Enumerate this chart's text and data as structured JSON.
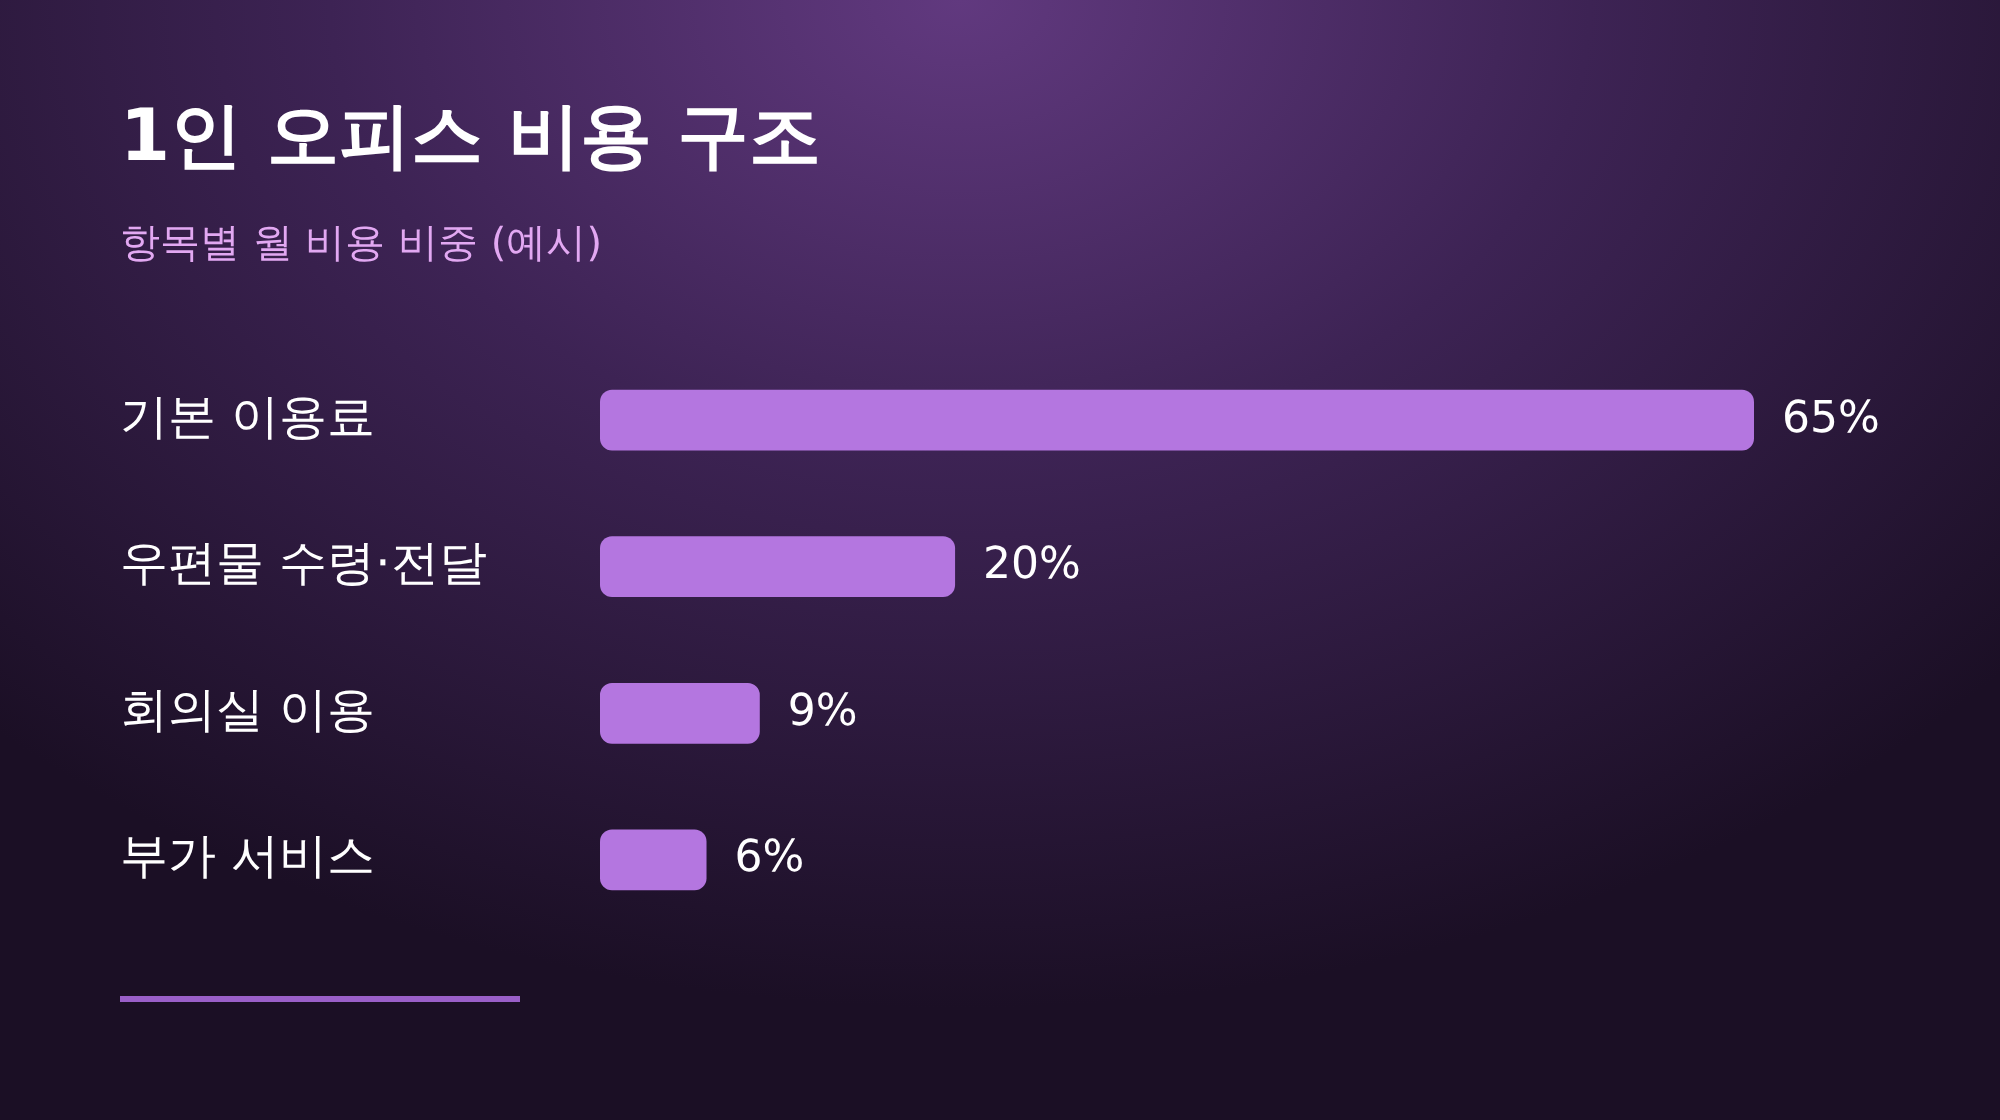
{
  "chart_data": {
    "type": "bar",
    "orientation": "horizontal",
    "title": "1인 오피스 비용 구조",
    "subtitle": "항목별 월 비용 비중 (예시)",
    "categories": [
      "기본 이용료",
      "우편물 수령·전달",
      "회의실 이용",
      "부가 서비스"
    ],
    "values": [
      65,
      20,
      9,
      6
    ],
    "value_labels": [
      "65%",
      "20%",
      "9%",
      "6%"
    ],
    "color": "#b476e0",
    "legend": false,
    "tick_labels": "y"
  }
}
